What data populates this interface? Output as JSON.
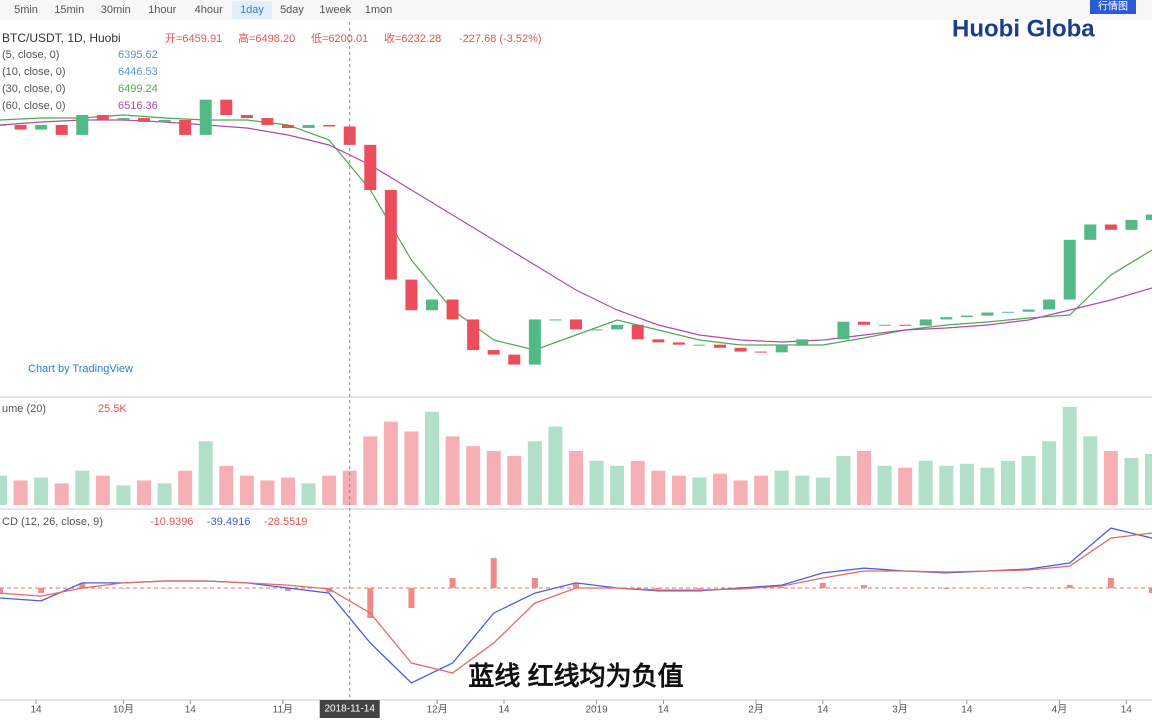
{
  "toolbar": {
    "intervals": [
      "5min",
      "15min",
      "30min",
      "1hour",
      "4hour",
      "1day",
      "5day",
      "1week",
      "1mon"
    ],
    "active": 5
  },
  "logo": "Huobi Globa",
  "view_button": "行情图",
  "subtitle": "蓝线 红线均为负值",
  "crosshair": {
    "x": 68,
    "label": "2018-11-14"
  },
  "chart_data": [
    {
      "type": "candlestick",
      "title": "BTC/USDT, 1D, Huobi",
      "ohlc": [
        "开=6459.91",
        "高=6498.20",
        "低=6200.01",
        "收=6232.28"
      ],
      "change": "-227.68 (-3.52%)",
      "watermark": "Chart by TradingView",
      "x": [
        0,
        4,
        8,
        12,
        16,
        20,
        24,
        28,
        32,
        36,
        40,
        44,
        48,
        52,
        56,
        60,
        64,
        68,
        72,
        76,
        80,
        84,
        88,
        92,
        96,
        100,
        104,
        108,
        112,
        116,
        120,
        124,
        128,
        132,
        136,
        140,
        144,
        148,
        152,
        156,
        160,
        164,
        168,
        172,
        176,
        180,
        184,
        188,
        192,
        196,
        200,
        204,
        208,
        212,
        216,
        220,
        224
      ],
      "close": [
        6400,
        6340,
        6400,
        6270,
        6530,
        6465,
        6490,
        6440,
        6465,
        6270,
        6730,
        6530,
        6490,
        6400,
        6360,
        6400,
        6380,
        6140,
        5550,
        4380,
        3980,
        4120,
        3860,
        3460,
        3400,
        3270,
        3860,
        3860,
        3730,
        3730,
        3790,
        3600,
        3560,
        3530,
        3530,
        3490,
        3440,
        3430,
        3530,
        3600,
        3600,
        3830,
        3790,
        3790,
        3780,
        3860,
        3890,
        3910,
        3950,
        3960,
        3990,
        4120,
        4900,
        5100,
        5030,
        5160,
        5230
      ],
      "up_color": "#53b987",
      "down_color": "#eb4d5c",
      "xlim": [
        0,
        224
      ],
      "ylim": [
        2873,
        7640
      ],
      "lines": [
        {
          "name": "(5, close, 0)",
          "color": "#6b8fb3",
          "last": 6395.62
        },
        {
          "name": "(10, close, 0)",
          "color": "#5b9bd5",
          "last": 6446.53
        },
        {
          "name": "(30, close, 0)",
          "color": "#53a653",
          "last": 6499.24,
          "x": [
            0,
            8,
            16,
            24,
            32,
            40,
            48,
            56,
            64,
            72,
            80,
            88,
            96,
            104,
            112,
            120,
            128,
            136,
            144,
            152,
            160,
            168,
            176,
            184,
            192,
            200,
            208,
            216,
            224
          ],
          "values": [
            6465,
            6491,
            6491,
            6530,
            6491,
            6465,
            6465,
            6399,
            6203,
            5550,
            4636,
            3983,
            3591,
            3461,
            3657,
            3853,
            3722,
            3591,
            3526,
            3526,
            3526,
            3617,
            3722,
            3787,
            3826,
            3879,
            3918,
            4440,
            4767
          ]
        },
        {
          "name": "(60, close, 0)",
          "color": "#b04aa8",
          "last": 6516.36,
          "x": [
            0,
            8,
            16,
            24,
            32,
            40,
            48,
            56,
            64,
            72,
            80,
            88,
            96,
            104,
            112,
            120,
            128,
            136,
            144,
            152,
            160,
            168,
            176,
            184,
            192,
            200,
            208,
            216,
            224
          ],
          "values": [
            6399,
            6438,
            6465,
            6465,
            6438,
            6399,
            6360,
            6269,
            6138,
            5877,
            5550,
            5224,
            4897,
            4571,
            4244,
            3983,
            3787,
            3657,
            3591,
            3565,
            3591,
            3657,
            3722,
            3748,
            3787,
            3853,
            3983,
            4114,
            4271
          ]
        }
      ]
    },
    {
      "type": "bar",
      "title": "ume (20)",
      "last_label": "25.5K",
      "values": [
        30,
        25,
        28,
        22,
        35,
        30,
        20,
        25,
        22,
        35,
        65,
        40,
        30,
        25,
        28,
        22,
        30,
        35,
        70,
        85,
        75,
        95,
        70,
        60,
        55,
        50,
        65,
        80,
        55,
        45,
        40,
        45,
        35,
        30,
        28,
        32,
        25,
        30,
        35,
        30,
        28,
        50,
        55,
        40,
        38,
        45,
        40,
        42,
        38,
        45,
        50,
        65,
        100,
        70,
        55,
        48,
        52
      ],
      "xlim": [
        0,
        224
      ],
      "ylim": [
        0,
        105
      ]
    },
    {
      "type": "line",
      "title": "CD (12, 26, close, 9)",
      "legend_values": [
        {
          "value": -10.9396,
          "color": "#e05555"
        },
        {
          "value": -39.4916,
          "color": "#3b5bd0"
        },
        {
          "value": -28.5519,
          "color": "#e05555"
        }
      ],
      "x": [
        0,
        8,
        16,
        24,
        32,
        40,
        48,
        56,
        64,
        72,
        80,
        88,
        96,
        104,
        112,
        120,
        128,
        136,
        144,
        152,
        160,
        168,
        176,
        184,
        192,
        200,
        208,
        216,
        224
      ],
      "series": [
        {
          "color": "#4a5fd8",
          "values": [
            -41,
            -53,
            21,
            21,
            29,
            29,
            21,
            0,
            -21,
            -226,
            -390,
            -308,
            -103,
            -21,
            21,
            0,
            -12,
            -12,
            0,
            12,
            62,
            82,
            70,
            62,
            70,
            78,
            103,
            246,
            205
          ]
        },
        {
          "color": "#e46a6a",
          "values": [
            -21,
            -33,
            0,
            21,
            29,
            29,
            21,
            12,
            -4,
            -103,
            -308,
            -349,
            -226,
            -62,
            0,
            0,
            -8,
            -8,
            -4,
            8,
            41,
            70,
            70,
            66,
            70,
            74,
            90,
            205,
            226
          ]
        }
      ],
      "histogram": {
        "color": "#f08a8a",
        "values": [
          -20,
          -20,
          21,
          0,
          0,
          0,
          0,
          -12,
          -17,
          -123,
          -82,
          41,
          123,
          41,
          21,
          0,
          -4,
          -4,
          4,
          4,
          21,
          12,
          0,
          -4,
          0,
          4,
          13,
          41,
          -21
        ]
      },
      "xlim": [
        0,
        224
      ],
      "ylim": [
        -460,
        300
      ],
      "xticks": [
        {
          "value": 7,
          "label": "14"
        },
        {
          "value": 24,
          "label": "10月"
        },
        {
          "value": 37,
          "label": "14"
        },
        {
          "value": 55,
          "label": "11月"
        },
        {
          "value": 85,
          "label": "12月"
        },
        {
          "value": 98,
          "label": "14"
        },
        {
          "value": 116,
          "label": "2019"
        },
        {
          "value": 129,
          "label": "14"
        },
        {
          "value": 147,
          "label": "2月"
        },
        {
          "value": 160,
          "label": "14"
        },
        {
          "value": 175,
          "label": "3月"
        },
        {
          "value": 188,
          "label": "14"
        },
        {
          "value": 206,
          "label": "4月"
        },
        {
          "value": 219,
          "label": "14"
        }
      ]
    }
  ]
}
